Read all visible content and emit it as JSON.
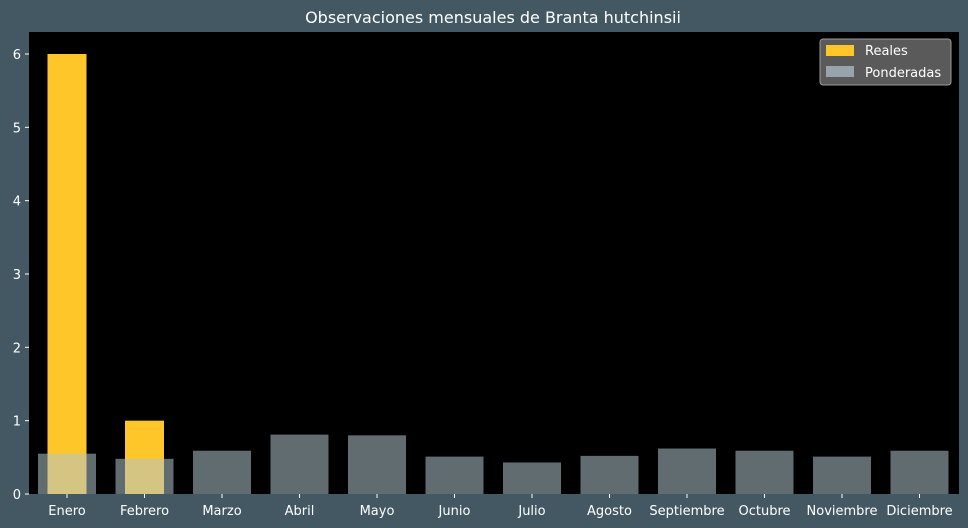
{
  "chart_data": {
    "type": "bar",
    "title": "Observaciones mensuales de Branta hutchinsii",
    "xlabel": "",
    "ylabel": "",
    "categories": [
      "Enero",
      "Febrero",
      "Marzo",
      "Abril",
      "Mayo",
      "Junio",
      "Julio",
      "Agosto",
      "Septiembre",
      "Octubre",
      "Noviembre",
      "Diciembre"
    ],
    "series": [
      {
        "name": "Reales",
        "values": [
          6,
          1,
          0,
          0,
          0,
          0,
          0,
          0,
          0,
          0,
          0,
          0
        ],
        "color": "#ffc62a"
      },
      {
        "name": "Ponderadas",
        "values": [
          0.55,
          0.48,
          0.59,
          0.81,
          0.8,
          0.51,
          0.43,
          0.52,
          0.62,
          0.59,
          0.51,
          0.59
        ],
        "color": "#b0c4cc",
        "opacity": 0.55
      }
    ],
    "ylim": [
      0,
      6.3
    ],
    "yticks": [
      0,
      1,
      2,
      3,
      4,
      5,
      6
    ],
    "grid": false,
    "legend_position": "top-right",
    "colors": {
      "figure_bg": "#435863",
      "plot_bg": "#000000",
      "text": "#ffffff",
      "legend_bg": "#5a5a5a"
    }
  }
}
